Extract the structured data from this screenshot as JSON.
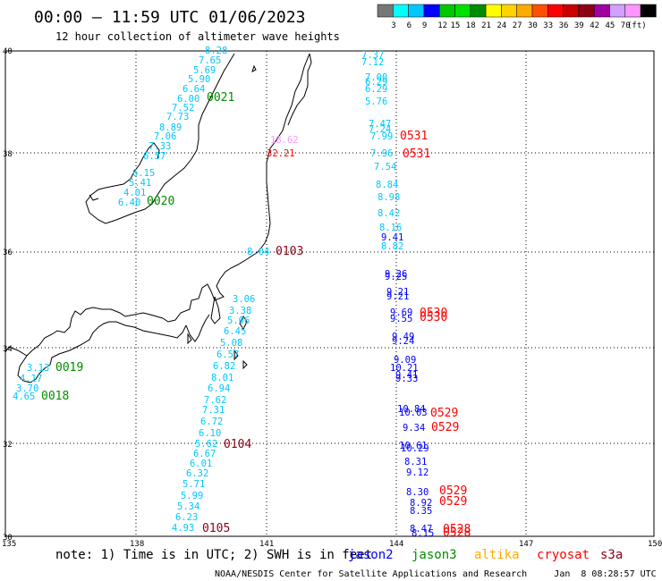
{
  "header": {
    "title": "00:00 – 11:59 UTC 01/06/2023",
    "subtitle": "12 hour collection of altimeter wave heights"
  },
  "legend": {
    "colors": [
      "#777777",
      "#00ffff",
      "#00c8ff",
      "#0000ff",
      "#00c800",
      "#00e000",
      "#008c00",
      "#ffff00",
      "#ffd200",
      "#ffaa00",
      "#ff5000",
      "#ff0000",
      "#c80000",
      "#8c0014",
      "#a000a0",
      "#d2a0ff",
      "#ff96ff",
      "#000000"
    ],
    "labels": [
      "3",
      "6",
      "9",
      "12",
      "15",
      "18",
      "21",
      "24",
      "27",
      "30",
      "33",
      "36",
      "39",
      "42",
      "45",
      "70"
    ],
    "unit": "(ft)"
  },
  "axes": {
    "x_ticks": [
      "135",
      "138",
      "141",
      "144",
      "147",
      "150"
    ],
    "y_ticks": [
      "40",
      "38",
      "36",
      "34",
      "32",
      "30"
    ]
  },
  "passes": [
    {
      "label": "0021",
      "color": "#008c00"
    },
    {
      "label": "0020",
      "color": "#008c00"
    },
    {
      "label": "0019",
      "color": "#008c00"
    },
    {
      "label": "0018",
      "color": "#008c00"
    },
    {
      "label": "0103",
      "color": "#8c0014"
    },
    {
      "label": "0104",
      "color": "#8c0014"
    },
    {
      "label": "0105",
      "color": "#8c0014"
    },
    {
      "label": "0531",
      "color": "#ff0000"
    },
    {
      "label": "0531",
      "color": "#ff0000"
    },
    {
      "label": "0530",
      "color": "#ff0000"
    },
    {
      "label": "0530",
      "color": "#ff0000"
    },
    {
      "label": "0529",
      "color": "#ff0000"
    },
    {
      "label": "0529",
      "color": "#ff0000"
    },
    {
      "label": "0529",
      "color": "#ff0000"
    },
    {
      "label": "0529",
      "color": "#ff0000"
    },
    {
      "label": "0528",
      "color": "#ff0000"
    },
    {
      "label": "0528",
      "color": "#ff0000"
    }
  ],
  "tracks": {
    "west": {
      "color": "#00c8ff",
      "values": [
        "8.28",
        "7.65",
        "5.69",
        "5.90",
        "6.64",
        "6.00",
        "7.52",
        "7.73",
        "8.89",
        "7.06",
        "7.33",
        "6.57",
        "6.15",
        "5.41",
        "4.01",
        "6.40"
      ]
    },
    "coast_sw": {
      "color": "#00c8ff",
      "values": [
        "3.13",
        "4.17",
        "3.70",
        "4.65"
      ]
    },
    "coast_ne": [
      {
        "v": "18.62",
        "color": "#ff96ff"
      },
      {
        "v": "32.21",
        "color": "#ff0000"
      }
    ],
    "south": {
      "color": "#00c8ff",
      "values": [
        "8.04",
        "3.06",
        "3.38",
        "5.06",
        "6.45",
        "5.08",
        "6.57",
        "6.82",
        "8.01",
        "6.94",
        "7.62",
        "7.31",
        "6.72",
        "6.10",
        "5.62",
        "6.67",
        "6.01",
        "6.32",
        "5.71",
        "5.99",
        "5.34",
        "6.23",
        "4.93"
      ]
    },
    "east_cyan": {
      "color": "#00c8ff",
      "values": [
        "7.37",
        "7.12",
        "7.00",
        "6.29",
        "6.29",
        "5.76",
        "7.47",
        "7.24",
        "7.99",
        "7.96",
        "7.54",
        "8.84",
        "8.98",
        "8.42",
        "8.16",
        "8.82"
      ]
    },
    "east_blue": {
      "color": "#0000ff",
      "values": [
        "9.41",
        "9.26",
        "9.25",
        "9.21",
        "9.21",
        "9.69",
        "9.55",
        "9.49",
        "9.24",
        "9.09",
        "10.21",
        "9.41",
        "9.33",
        "10.84",
        "10.03",
        "9.34",
        "10.61",
        "10.29",
        "8.31",
        "9.12",
        "8.30",
        "8.92",
        "8.35",
        "8.47",
        "8.15"
      ]
    }
  },
  "footer": {
    "note": "note: 1) Time is in UTC; 2) SWH is in feet",
    "satellites": [
      {
        "name": "jason2",
        "color": "#0000ff"
      },
      {
        "name": "jason3",
        "color": "#008c00"
      },
      {
        "name": "altika",
        "color": "#ffaa00"
      },
      {
        "name": "cryosat",
        "color": "#ff0000"
      },
      {
        "name": "s3a",
        "color": "#8c0014"
      }
    ],
    "credit": "NOAA/NESDIS Center for Satellite Applications and Research     Jan  8 08:28:57 UTC 2023"
  }
}
